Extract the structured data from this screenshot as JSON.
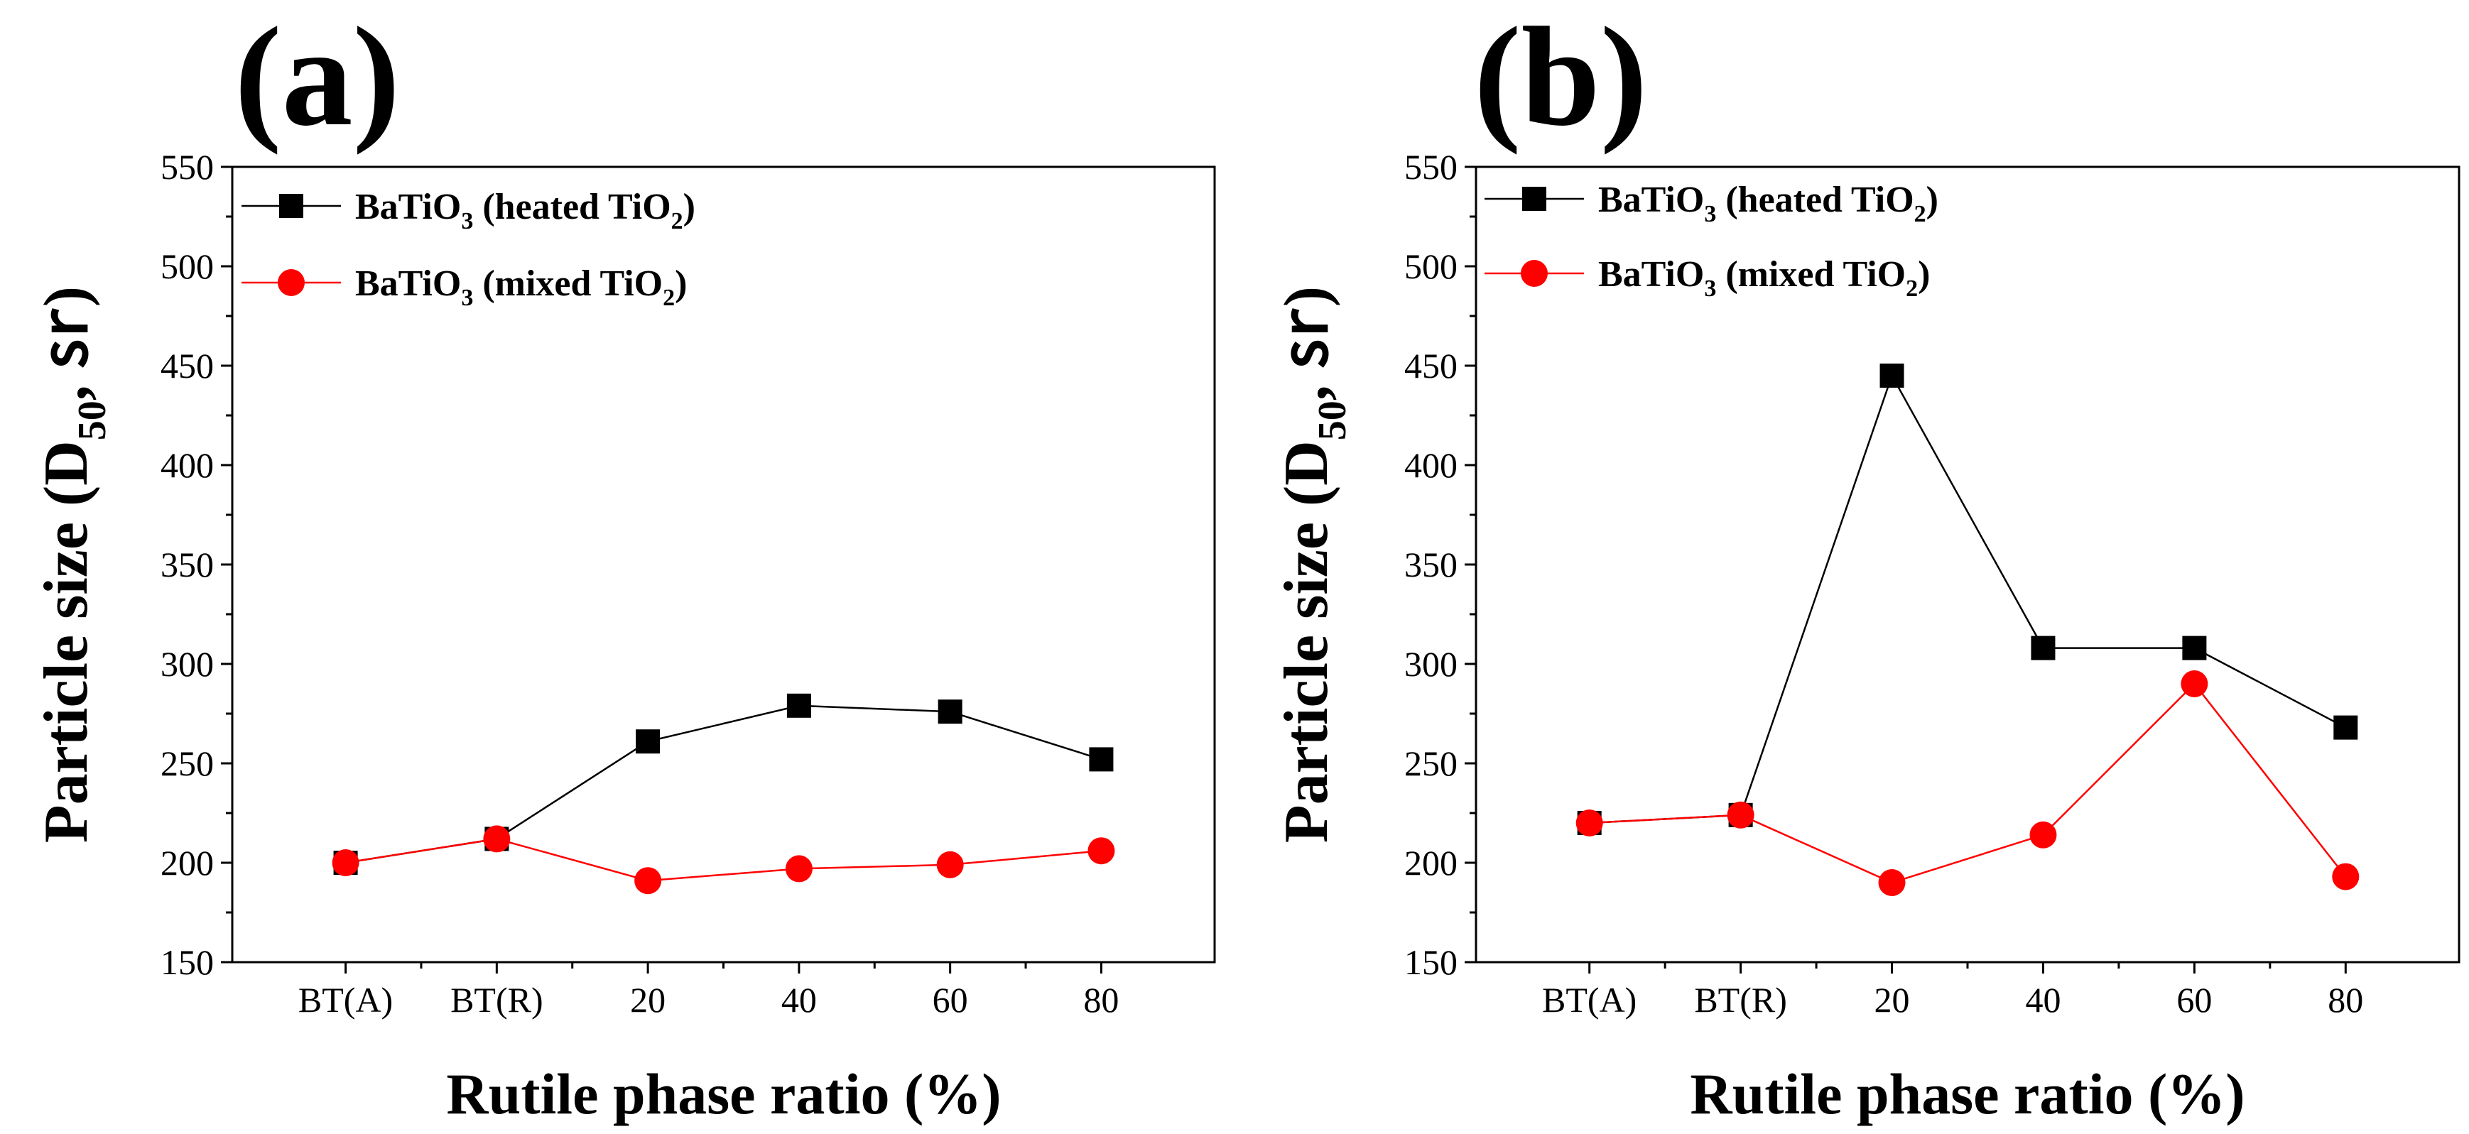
{
  "chart_data": [
    {
      "type": "line",
      "panel_label": "(a)",
      "categories": [
        "BT(A)",
        "BT(R)",
        "20",
        "40",
        "60",
        "80"
      ],
      "xlabel": "Rutile phase ratio (%)",
      "ylabel": {
        "main": "Particle size (D",
        "sub": "50",
        "tail": ", ㏛)"
      },
      "ylim": [
        150,
        550
      ],
      "yticks": [
        "150",
        "200",
        "250",
        "300",
        "350",
        "400",
        "450",
        "500",
        "550"
      ],
      "legend_position": "top-left",
      "series": [
        {
          "name": "BaTiO3 (heated TiO2)",
          "color": "#000000",
          "marker": "square",
          "legend": {
            "a": "BaTiO",
            "b": "3",
            "c": " (heated TiO",
            "d": "2",
            "e": ")"
          },
          "values": [
            200,
            212,
            261,
            279,
            276,
            252
          ]
        },
        {
          "name": "BaTiO3 (mixed TiO2)",
          "color": "#ff0000",
          "marker": "circle",
          "legend": {
            "a": "BaTiO",
            "b": "3",
            "c": " (mixed TiO",
            "d": "2",
            "e": ")"
          },
          "values": [
            200,
            212,
            191,
            197,
            199,
            206
          ]
        }
      ]
    },
    {
      "type": "line",
      "panel_label": "(b)",
      "categories": [
        "BT(A)",
        "BT(R)",
        "20",
        "40",
        "60",
        "80"
      ],
      "xlabel": "Rutile phase ratio (%)",
      "ylabel": {
        "main": "Particle size (D",
        "sub": "50",
        "tail": ", ㏛)"
      },
      "ylim": [
        150,
        550
      ],
      "yticks": [
        "150",
        "200",
        "250",
        "300",
        "350",
        "400",
        "450",
        "500",
        "550"
      ],
      "legend_position": "top-left",
      "series": [
        {
          "name": "BaTiO3 (heated TiO2)",
          "color": "#000000",
          "marker": "square",
          "legend": {
            "a": "BaTiO",
            "b": "3",
            "c": " (heated TiO",
            "d": "2",
            "e": ")"
          },
          "values": [
            220,
            224,
            445,
            308,
            308,
            268
          ]
        },
        {
          "name": "BaTiO3 (mixed TiO2)",
          "color": "#ff0000",
          "marker": "circle",
          "legend": {
            "a": "BaTiO",
            "b": "3",
            "c": " (mixed TiO",
            "d": "2",
            "e": ")"
          },
          "values": [
            220,
            224,
            190,
            214,
            290,
            193
          ]
        }
      ]
    }
  ]
}
